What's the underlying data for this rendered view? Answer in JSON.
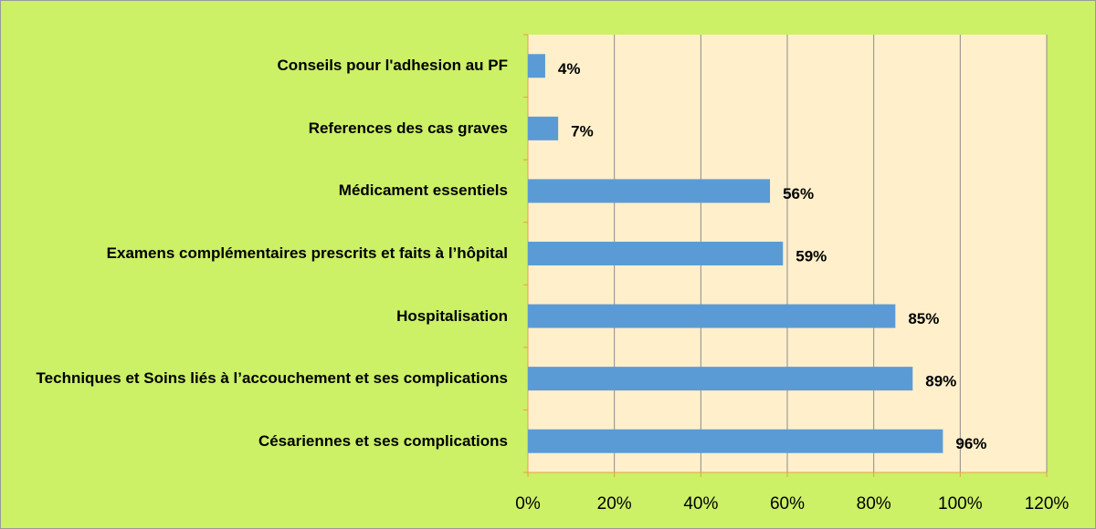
{
  "chart_data": {
    "type": "bar",
    "orientation": "horizontal",
    "categories": [
      "Conseils  pour l'adhesion au PF",
      "References des cas graves",
      "Médicament essentiels",
      "Examens complémentaires prescrits et faits à l’hôpital",
      "Hospitalisation",
      "Techniques et Soins liés à l’accouchement et ses complications",
      "Césariennes et ses complications"
    ],
    "values": [
      4,
      7,
      56,
      59,
      85,
      89,
      96
    ],
    "value_labels": [
      "4%",
      "7%",
      "56%",
      "59%",
      "85%",
      "89%",
      "96%"
    ],
    "color": "#5b9bd5",
    "xlim": [
      0,
      120
    ],
    "xticks": [
      {
        "value": 0,
        "label": "0%"
      },
      {
        "value": 20,
        "label": "20%"
      },
      {
        "value": 40,
        "label": "40%"
      },
      {
        "value": 60,
        "label": "60%"
      },
      {
        "value": 80,
        "label": "80%"
      },
      {
        "value": 100,
        "label": "100%"
      },
      {
        "value": 120,
        "label": "120%"
      }
    ],
    "grid": true
  }
}
